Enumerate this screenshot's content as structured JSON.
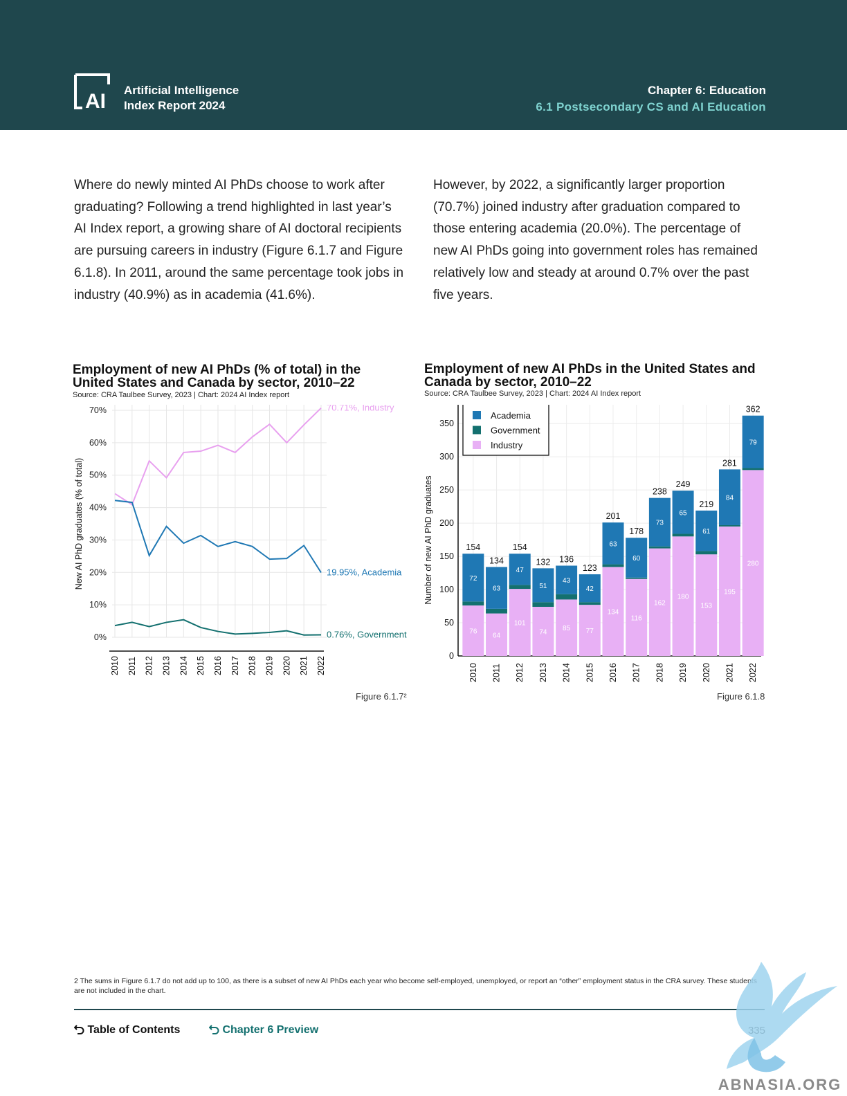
{
  "header": {
    "brand_line1": "Artificial Intelligence",
    "brand_line2": "Index Report 2024",
    "chapter": "Chapter 6: Education",
    "section": "6.1 Postsecondary CS and AI Education",
    "logo_text": "AI",
    "logo_icon": "ai-index-logo-icon",
    "background_color": "#1f474d",
    "accent_color": "#7fd3d0"
  },
  "intro": {
    "left": "Where do newly minted AI PhDs choose to work after graduating? Following a trend highlighted in last year’s AI Index report, a growing share of AI doctoral recipients are pursuing careers in industry (Figure 6.1.7 and Figure 6.1.8). In 2011, around the same percentage took jobs in industry (40.9%) as in academia (41.6%).",
    "right": "However, by 2022, a significantly larger proportion (70.7%) joined industry after graduation compared to those entering academia (20.0%). The percentage of new AI PhDs going into government roles has remained relatively low and steady at around 0.7% over the past five years."
  },
  "chart_data": [
    {
      "type": "line",
      "title": "Employment of new AI PhDs (% of total) in the United States and Canada by sector, 2010–22",
      "title_line1": "Employment of new AI PhDs (% of total) in the",
      "title_line2": "United States and Canada by sector, 2010–22",
      "source": "Source: CRA Taulbee Survey, 2023 | Chart: 2024 AI Index report",
      "figure_label": "Figure 6.1.7²",
      "x": [
        "2010",
        "2011",
        "2012",
        "2013",
        "2014",
        "2015",
        "2016",
        "2017",
        "2018",
        "2019",
        "2020",
        "2021",
        "2022"
      ],
      "xlabel": "",
      "ylabel": "New AI PhD graduates (% of total)",
      "ylim": [
        0,
        70
      ],
      "yticks": [
        "0%",
        "10%",
        "20%",
        "30%",
        "40%",
        "50%",
        "60%",
        "70%"
      ],
      "grid": true,
      "series": [
        {
          "name": "Industry",
          "color": "#e8a0ef",
          "end_label": "70.71%, Industry",
          "values": [
            44.3,
            40.9,
            54.4,
            49.2,
            57.0,
            57.4,
            59.2,
            57.0,
            61.8,
            65.7,
            60.0,
            65.5,
            70.71
          ]
        },
        {
          "name": "Academia",
          "color": "#1f78b4",
          "end_label": "19.95%, Academia",
          "values": [
            42.2,
            41.6,
            25.2,
            34.2,
            29.0,
            31.4,
            28.0,
            29.5,
            28.0,
            24.1,
            24.3,
            28.3,
            19.95
          ]
        },
        {
          "name": "Government",
          "color": "#13706f",
          "end_label": "0.76%, Government",
          "values": [
            3.6,
            4.6,
            3.3,
            4.6,
            5.4,
            3.0,
            1.8,
            1.0,
            1.2,
            1.5,
            2.0,
            0.7,
            0.76
          ]
        }
      ]
    },
    {
      "type": "bar",
      "stacked": true,
      "title": "Employment of new AI PhDs in the United States and Canada by sector, 2010–22",
      "title_line1": "Employment of new AI PhDs in the United States and",
      "title_line2": "Canada by sector, 2010–22",
      "source": "Source: CRA Taulbee Survey, 2023 | Chart: 2024 AI Index report",
      "figure_label": "Figure 6.1.8",
      "categories": [
        "2010",
        "2011",
        "2012",
        "2013",
        "2014",
        "2015",
        "2016",
        "2017",
        "2018",
        "2019",
        "2020",
        "2021",
        "2022"
      ],
      "xlabel": "",
      "ylabel": "Number of new AI PhD graduates",
      "ylim": [
        0,
        370
      ],
      "yticks": [
        "0",
        "50",
        "100",
        "150",
        "200",
        "250",
        "300",
        "350"
      ],
      "grid": true,
      "legend_position": "top-left",
      "totals": [
        "154",
        "134",
        "154",
        "132",
        "136",
        "123",
        "201",
        "178",
        "238",
        "249",
        "219",
        "281",
        "362"
      ],
      "series": [
        {
          "name": "Industry",
          "color": "#e8b0f5",
          "values": [
            76,
            64,
            101,
            74,
            85,
            77,
            134,
            116,
            162,
            180,
            153,
            195,
            280
          ]
        },
        {
          "name": "Government",
          "color": "#13706f",
          "values": [
            6,
            7,
            6,
            7,
            8,
            4,
            4,
            2,
            3,
            4,
            5,
            2,
            3
          ]
        },
        {
          "name": "Academia",
          "color": "#1f78b4",
          "values": [
            72,
            63,
            47,
            51,
            43,
            42,
            63,
            60,
            73,
            65,
            61,
            84,
            79
          ]
        }
      ],
      "legend": [
        "Academia",
        "Government",
        "Industry"
      ]
    }
  ],
  "footnote": "2 The sums in Figure 6.1.7 do not add up to 100, as there is a subset of new AI PhDs each year who become self-employed, unemployed, or report an “other” employment status in the CRA survey. These students are not included in the chart.",
  "footer": {
    "toc_label": "Table of Contents",
    "chapter_preview_label": "Chapter 6 Preview",
    "page_number": "335",
    "return_icon": "return-arrow-icon"
  },
  "watermark": {
    "text": "ABNASIA.ORG",
    "icon": "griffin-watermark-icon"
  }
}
